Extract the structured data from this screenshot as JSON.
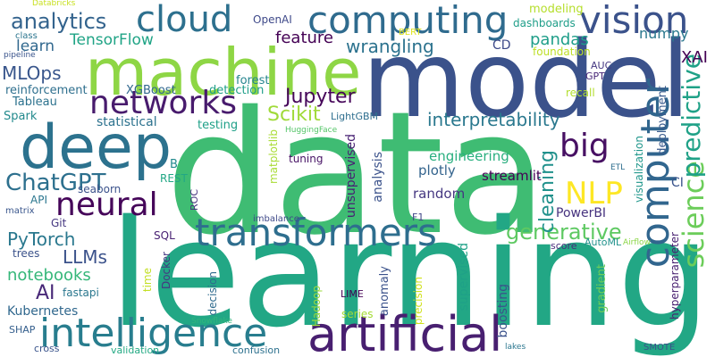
{
  "words": [
    {
      "text": "data",
      "color": "#3fbc73"
    },
    {
      "text": "learning",
      "color": "#22a785"
    },
    {
      "text": "model",
      "color": "#3b528b"
    },
    {
      "text": "machine",
      "color": "#8ed645"
    },
    {
      "text": "deep",
      "color": "#2c728e"
    },
    {
      "text": "artificial",
      "color": "#481f70"
    },
    {
      "text": "intelligence",
      "color": "#287d8e"
    },
    {
      "text": "computing",
      "color": "#2f6b8e"
    },
    {
      "text": "vision",
      "color": "#3b528b"
    },
    {
      "text": "cloud",
      "color": "#2d708e"
    },
    {
      "text": "neural",
      "color": "#450559"
    },
    {
      "text": "networks",
      "color": "#481b6d"
    },
    {
      "text": "transformers",
      "color": "#2e6e8e"
    },
    {
      "text": "computer",
      "color": "#31668e"
    },
    {
      "text": "science",
      "color": "#6ccd5a"
    },
    {
      "text": "predictive",
      "color": "#1fa187"
    },
    {
      "text": "big",
      "color": "#471063"
    },
    {
      "text": "NLP",
      "color": "#fde725"
    },
    {
      "text": "ChatGPT",
      "color": "#2d708e"
    },
    {
      "text": "analytics",
      "color": "#33638d"
    },
    {
      "text": "generative",
      "color": "#5ec962"
    },
    {
      "text": "interpretability",
      "color": "#2a788e"
    },
    {
      "text": "Jupyter",
      "color": "#450559"
    },
    {
      "text": "feature",
      "color": "#440154"
    },
    {
      "text": "wrangling",
      "color": "#2c728e"
    },
    {
      "text": "TensorFlow",
      "color": "#20a486"
    },
    {
      "text": "PyTorch",
      "color": "#2a788e"
    },
    {
      "text": "LLMs",
      "color": "#3b528b"
    },
    {
      "text": "notebooks",
      "color": "#35b779"
    },
    {
      "text": "AI",
      "color": "#482878"
    },
    {
      "text": "Scikit",
      "color": "#a0da39"
    },
    {
      "text": "cleaning",
      "color": "#21918c"
    },
    {
      "text": "pandas",
      "color": "#1f9e89"
    },
    {
      "text": "numpy",
      "color": "#2a788e"
    },
    {
      "text": "XAI",
      "color": "#440154"
    },
    {
      "text": "MLOps",
      "color": "#39568c"
    },
    {
      "text": "learn",
      "color": "#31688e"
    },
    {
      "text": "Kubernetes",
      "color": "#31688e"
    },
    {
      "text": "engineering",
      "color": "#29af7f"
    },
    {
      "text": "streamlit",
      "color": "#440154"
    },
    {
      "text": "plotly",
      "color": "#33638d"
    },
    {
      "text": "random",
      "color": "#453781"
    },
    {
      "text": "PowerBI",
      "color": "#46327e"
    },
    {
      "text": "statistical",
      "color": "#2c728e"
    },
    {
      "text": "reinforcement",
      "color": "#2e6f8e"
    },
    {
      "text": "XGBoost",
      "color": "#31688e"
    },
    {
      "text": "detection",
      "color": "#1f9e89"
    },
    {
      "text": "forest",
      "color": "#25848e"
    },
    {
      "text": "modeling",
      "color": "#b5de2b"
    },
    {
      "text": "dashboards",
      "color": "#1f9e89"
    },
    {
      "text": "CD",
      "color": "#3e4a89"
    },
    {
      "text": "foundation",
      "color": "#bddf26"
    },
    {
      "text": "OpenAI",
      "color": "#3e4989"
    },
    {
      "text": "class",
      "color": "#2b758e"
    },
    {
      "text": "Databricks",
      "color": "#c8e020"
    },
    {
      "text": "pipeline",
      "color": "#3a548c"
    },
    {
      "text": "BERT",
      "color": "#dde318"
    },
    {
      "text": "Tableau",
      "color": "#2c728e"
    },
    {
      "text": "Spark",
      "color": "#238a8d"
    },
    {
      "text": "testing",
      "color": "#1fa088"
    },
    {
      "text": "LightGBM",
      "color": "#2e6e8e"
    },
    {
      "text": "HuggingFace",
      "color": "#54c568"
    },
    {
      "text": "tuning",
      "color": "#471365"
    },
    {
      "text": "B",
      "color": "#238a8d"
    },
    {
      "text": "REST",
      "color": "#22a785"
    },
    {
      "text": "seaborn",
      "color": "#3b528b"
    },
    {
      "text": "API",
      "color": "#2a768e"
    },
    {
      "text": "matrix",
      "color": "#39568c"
    },
    {
      "text": "Git",
      "color": "#453781"
    },
    {
      "text": "trees",
      "color": "#3b528b"
    },
    {
      "text": "SQL",
      "color": "#482173"
    },
    {
      "text": "ROC",
      "color": "#46337f"
    },
    {
      "text": "imbalance",
      "color": "#3e4989"
    },
    {
      "text": "F1",
      "color": "#404688"
    },
    {
      "text": "AUC",
      "color": "#453882"
    },
    {
      "text": "GPT",
      "color": "#482677"
    },
    {
      "text": "recall",
      "color": "#b2dd2d"
    },
    {
      "text": "ETL",
      "color": "#2e6e8e"
    },
    {
      "text": "CI",
      "color": "#3a548c"
    },
    {
      "text": "fastapi",
      "color": "#2a778e"
    },
    {
      "text": "Docker",
      "color": "#453882"
    },
    {
      "text": "score",
      "color": "#472d7b"
    },
    {
      "text": "AutoML",
      "color": "#20928c"
    },
    {
      "text": "Airflow",
      "color": "#8bd646"
    },
    {
      "text": "LIME",
      "color": "#440154"
    },
    {
      "text": "series",
      "color": "#a5db36"
    },
    {
      "text": "SHAP",
      "color": "#355f8d"
    },
    {
      "text": "Snowflake",
      "color": "#30b57c"
    },
    {
      "text": "cross",
      "color": "#3a548c"
    },
    {
      "text": "validation",
      "color": "#23a983"
    },
    {
      "text": "confusion",
      "color": "#2d718e"
    },
    {
      "text": "lakes",
      "color": "#2a768e"
    },
    {
      "text": "SMOTE",
      "color": "#3b528b"
    },
    {
      "text": "deployment",
      "color": "#38598c"
    },
    {
      "text": "visualization",
      "color": "#1f968b"
    },
    {
      "text": "hyperparameter",
      "color": "#482071"
    },
    {
      "text": "gradient",
      "color": "#6ece58"
    },
    {
      "text": "boosting",
      "color": "#3b528b"
    },
    {
      "text": "supervised",
      "color": "#1fa187"
    },
    {
      "text": "unsupervised",
      "color": "#482173"
    },
    {
      "text": "analysis",
      "color": "#3b528b"
    },
    {
      "text": "anomaly",
      "color": "#3b528b"
    },
    {
      "text": "precision",
      "color": "#d0e11c"
    },
    {
      "text": "decision",
      "color": "#2f6b8e"
    },
    {
      "text": "time",
      "color": "#c2df23"
    },
    {
      "text": "Hadoop",
      "color": "#9bd93c"
    },
    {
      "text": "matplotlib",
      "color": "#a8db34"
    }
  ]
}
